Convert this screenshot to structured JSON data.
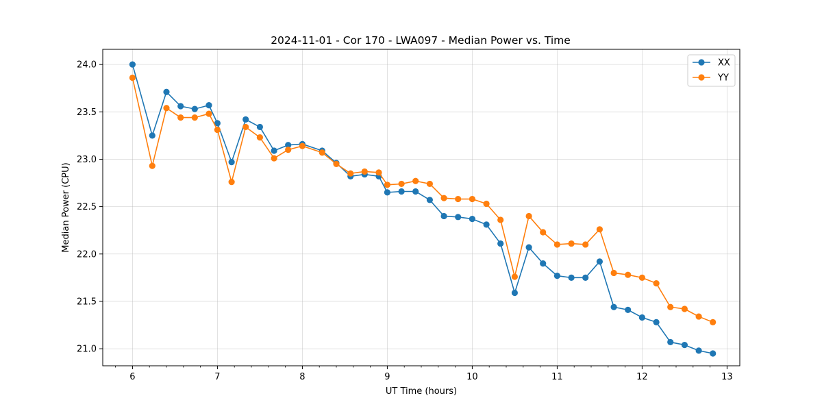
{
  "chart_data": {
    "type": "line",
    "title": "2024-11-01 - Cor 170 - LWA097 - Median Power vs. Time",
    "xlabel": "UT Time (hours)",
    "ylabel": "Median Power (CPU)",
    "xlim": [
      5.65,
      13.15
    ],
    "ylim": [
      20.82,
      24.16
    ],
    "xticks": [
      6,
      7,
      8,
      9,
      10,
      11,
      12,
      13
    ],
    "xtick_labels": [
      "6",
      "7",
      "8",
      "9",
      "10",
      "11",
      "12",
      "13"
    ],
    "yticks": [
      21.0,
      21.5,
      22.0,
      22.5,
      23.0,
      23.5,
      24.0
    ],
    "ytick_labels": [
      "21.0",
      "21.5",
      "22.0",
      "22.5",
      "23.0",
      "23.5",
      "24.0"
    ],
    "grid": true,
    "legend_position": "top-right",
    "x": [
      6.0,
      6.233,
      6.4,
      6.567,
      6.733,
      6.9,
      7.0,
      7.167,
      7.333,
      7.5,
      7.667,
      7.833,
      8.0,
      8.233,
      8.4,
      8.567,
      8.733,
      8.9,
      9.0,
      9.167,
      9.333,
      9.5,
      9.667,
      9.833,
      10.0,
      10.167,
      10.333,
      10.5,
      10.667,
      10.833,
      11.0,
      11.167,
      11.333,
      11.5,
      11.667,
      11.833,
      12.0,
      12.167,
      12.333,
      12.5,
      12.667,
      12.833
    ],
    "series": [
      {
        "name": "XX",
        "color": "#1f77b4",
        "values": [
          24.0,
          23.25,
          23.71,
          23.56,
          23.53,
          23.57,
          23.38,
          22.97,
          23.42,
          23.34,
          23.09,
          23.15,
          23.16,
          23.09,
          22.96,
          22.82,
          22.84,
          22.82,
          22.65,
          22.66,
          22.66,
          22.57,
          22.4,
          22.39,
          22.37,
          22.31,
          22.11,
          21.59,
          22.07,
          21.9,
          21.77,
          21.75,
          21.75,
          21.92,
          21.44,
          21.41,
          21.33,
          21.28,
          21.07,
          21.04,
          20.98,
          20.95
        ]
      },
      {
        "name": "YY",
        "color": "#ff7f0e",
        "values": [
          23.86,
          22.93,
          23.54,
          23.44,
          23.44,
          23.48,
          23.31,
          22.76,
          23.34,
          23.23,
          23.01,
          23.1,
          23.14,
          23.07,
          22.95,
          22.85,
          22.87,
          22.86,
          22.73,
          22.74,
          22.77,
          22.74,
          22.59,
          22.58,
          22.58,
          22.53,
          22.36,
          21.76,
          22.4,
          22.23,
          22.1,
          22.11,
          22.1,
          22.26,
          21.8,
          21.78,
          21.75,
          21.69,
          21.44,
          21.42,
          21.34,
          21.28
        ]
      }
    ]
  }
}
